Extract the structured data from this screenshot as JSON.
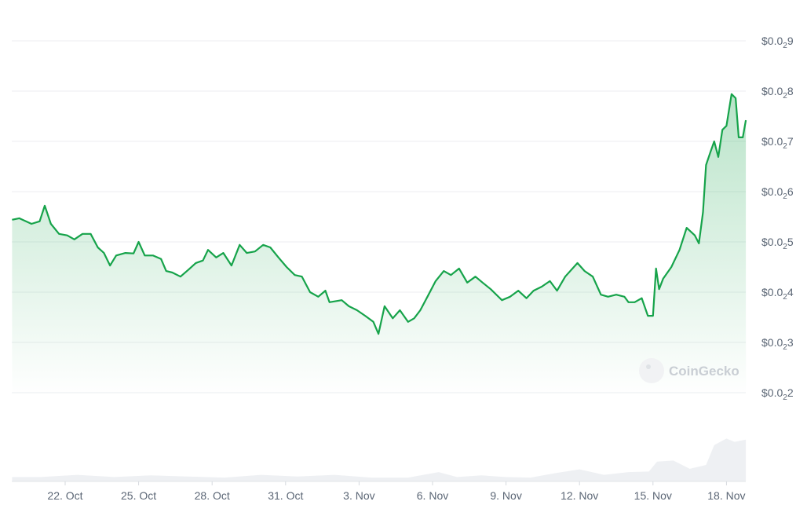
{
  "chart_data": {
    "type": "area",
    "title": "",
    "xlabel": "",
    "ylabel": "",
    "ylim": [
      0.0018,
      0.0092
    ],
    "grid": true,
    "legend": "none",
    "y_ticks": [
      {
        "value": 0.009,
        "label": "$0.0",
        "sub": "2",
        "digit": "9"
      },
      {
        "value": 0.008,
        "label": "$0.0",
        "sub": "2",
        "digit": "8"
      },
      {
        "value": 0.007,
        "label": "$0.0",
        "sub": "2",
        "digit": "7"
      },
      {
        "value": 0.006,
        "label": "$0.0",
        "sub": "2",
        "digit": "6"
      },
      {
        "value": 0.005,
        "label": "$0.0",
        "sub": "2",
        "digit": "5"
      },
      {
        "value": 0.004,
        "label": "$0.0",
        "sub": "2",
        "digit": "4"
      },
      {
        "value": 0.003,
        "label": "$0.0",
        "sub": "2",
        "digit": "3"
      },
      {
        "value": 0.002,
        "label": "$0.0",
        "sub": "2",
        "digit": "2"
      }
    ],
    "x_ticks": [
      {
        "date": "Oct 22 00:00",
        "label": "22. Oct"
      },
      {
        "date": "Oct 25 00:00",
        "label": "25. Oct"
      },
      {
        "date": "Oct 28 00:00",
        "label": "28. Oct"
      },
      {
        "date": "Oct 31 00:00",
        "label": "31. Oct"
      },
      {
        "date": "Nov 3 00:00",
        "label": "3. Nov"
      },
      {
        "date": "Nov 6 00:00",
        "label": "6. Nov"
      },
      {
        "date": "Nov 9 00:00",
        "label": "9. Nov"
      },
      {
        "date": "Nov 12 00:00",
        "label": "12. Nov"
      },
      {
        "date": "Nov 15 00:00",
        "label": "15. Nov"
      },
      {
        "date": "Nov 18 00:00",
        "label": "18. Nov"
      }
    ],
    "colors": {
      "line": "#16a34a",
      "fill": "#16a34a",
      "volume": "#eef0f3",
      "grid": "#eceef1"
    },
    "series": [
      {
        "x": [
          "Oct 19 20:00",
          "Oct 20 03:00",
          "Oct 20 15:00",
          "Oct 20 23:00",
          "Oct 21 04:00",
          "Oct 21 10:00",
          "Oct 21 18:00",
          "Oct 22 02:00",
          "Oct 22 09:00",
          "Oct 22 17:00",
          "Oct 23 01:00",
          "Oct 23 08:00",
          "Oct 23 14:00",
          "Oct 23 20:00",
          "Oct 24 02:00",
          "Oct 24 11:00",
          "Oct 24 19:00",
          "Oct 25 00:00",
          "Oct 25 06:00",
          "Oct 25 14:00",
          "Oct 25 22:00",
          "Oct 26 03:00",
          "Oct 26 09:00",
          "Oct 26 17:00",
          "Oct 27 01:00",
          "Oct 27 08:00",
          "Oct 27 15:00",
          "Oct 27 20:00",
          "Oct 28 04:00",
          "Oct 28 11:00",
          "Oct 28 19:00",
          "Oct 29 03:00",
          "Oct 29 10:00",
          "Oct 29 18:00",
          "Oct 30 02:00",
          "Oct 30 09:00",
          "Oct 30 17:00",
          "Oct 31 01:00",
          "Oct 31 09:00",
          "Oct 31 16:00",
          "Nov 1 00:00",
          "Nov 1 08:00",
          "Nov 1 15:00",
          "Nov 1 19:00",
          "Nov 2 07:00",
          "Nov 2 14:00",
          "Nov 2 22:00",
          "Nov 3 06:00",
          "Nov 3 14:00",
          "Nov 3 19:00",
          "Nov 4 01:00",
          "Nov 4 09:00",
          "Nov 4 16:00",
          "Nov 5 00:00",
          "Nov 5 06:00",
          "Nov 5 12:00",
          "Nov 5 19:00",
          "Nov 6 03:00",
          "Nov 6 11:00",
          "Nov 6 18:00",
          "Nov 7 02:00",
          "Nov 7 10:00",
          "Nov 7 18:00",
          "Nov 8 01:00",
          "Nov 8 09:00",
          "Nov 8 20:00",
          "Nov 9 04:00",
          "Nov 9 12:00",
          "Nov 9 20:00",
          "Nov 10 03:00",
          "Nov 10 11:00",
          "Nov 10 19:00",
          "Nov 11 02:00",
          "Nov 11 10:00",
          "Nov 11 22:00",
          "Nov 12 05:00",
          "Nov 12 13:00",
          "Nov 12 21:00",
          "Nov 13 04:00",
          "Nov 13 12:00",
          "Nov 13 20:00",
          "Nov 14 00:00",
          "Nov 14 06:00",
          "Nov 14 13:00",
          "Nov 14 19:00",
          "Nov 15 00:00",
          "Nov 15 03:00",
          "Nov 15 06:00",
          "Nov 15 10:00",
          "Nov 15 18:00",
          "Nov 16 02:00",
          "Nov 16 09:00",
          "Nov 16 17:00",
          "Nov 16 21:00",
          "Nov 17 01:00",
          "Nov 17 04:00",
          "Nov 17 08:00",
          "Nov 17 12:00",
          "Nov 17 16:00",
          "Nov 17 20:00",
          "Nov 18 00:00",
          "Nov 18 05:00",
          "Nov 18 09:00",
          "Nov 18 12:00",
          "Nov 18 16:00",
          "Nov 18 19:00"
        ],
        "y": [
          0.00544,
          0.00547,
          0.00536,
          0.00541,
          0.00572,
          0.00536,
          0.00516,
          0.00513,
          0.00505,
          0.00516,
          0.00516,
          0.00489,
          0.00478,
          0.00453,
          0.00473,
          0.00478,
          0.00477,
          0.005,
          0.00473,
          0.00473,
          0.00466,
          0.00442,
          0.00439,
          0.00431,
          0.00445,
          0.00458,
          0.00463,
          0.00484,
          0.00469,
          0.00478,
          0.00453,
          0.00494,
          0.00478,
          0.00481,
          0.00494,
          0.00489,
          0.00469,
          0.0045,
          0.00434,
          0.00431,
          0.004,
          0.00391,
          0.00403,
          0.0038,
          0.00384,
          0.00372,
          0.00364,
          0.00353,
          0.00341,
          0.00317,
          0.00372,
          0.00348,
          0.00364,
          0.00341,
          0.00348,
          0.00364,
          0.00391,
          0.00422,
          0.00442,
          0.00434,
          0.00447,
          0.00419,
          0.00431,
          0.00419,
          0.00406,
          0.00384,
          0.00391,
          0.00403,
          0.00388,
          0.00403,
          0.00411,
          0.00422,
          0.00403,
          0.00431,
          0.00458,
          0.00442,
          0.00431,
          0.00395,
          0.00391,
          0.00395,
          0.00391,
          0.0038,
          0.0038,
          0.00388,
          0.00353,
          0.00353,
          0.00447,
          0.00406,
          0.00427,
          0.0045,
          0.00484,
          0.00528,
          0.00513,
          0.00497,
          0.00559,
          0.00653,
          0.00677,
          0.007,
          0.00669,
          0.00723,
          0.00731,
          0.00794,
          0.00786,
          0.00708,
          0.00708,
          0.00742
        ]
      }
    ],
    "volume": {
      "x": [
        "Oct 19 20:00",
        "Oct 21 00:00",
        "Oct 22 12:00",
        "Oct 24 00:00",
        "Oct 25 12:00",
        "Oct 27 00:00",
        "Oct 28 12:00",
        "Oct 30 00:00",
        "Oct 31 12:00",
        "Nov 2 00:00",
        "Nov 3 12:00",
        "Nov 5 00:00",
        "Nov 6 06:00",
        "Nov 7 00:00",
        "Nov 8 00:00",
        "Nov 9 00:00",
        "Nov 10 00:00",
        "Nov 11 00:00",
        "Nov 12 00:00",
        "Nov 13 00:00",
        "Nov 14 00:00",
        "Nov 14 20:00",
        "Nov 15 04:00",
        "Nov 15 20:00",
        "Nov 16 12:00",
        "Nov 17 04:00",
        "Nov 17 12:00",
        "Nov 18 00:00",
        "Nov 18 08:00",
        "Nov 18 19:00"
      ],
      "y": [
        0.08,
        0.08,
        0.12,
        0.08,
        0.11,
        0.09,
        0.07,
        0.12,
        0.09,
        0.12,
        0.07,
        0.07,
        0.17,
        0.08,
        0.11,
        0.08,
        0.07,
        0.15,
        0.22,
        0.12,
        0.17,
        0.18,
        0.36,
        0.38,
        0.23,
        0.3,
        0.66,
        0.78,
        0.72,
        0.76
      ]
    }
  },
  "watermark": {
    "text": "CoinGecko"
  }
}
